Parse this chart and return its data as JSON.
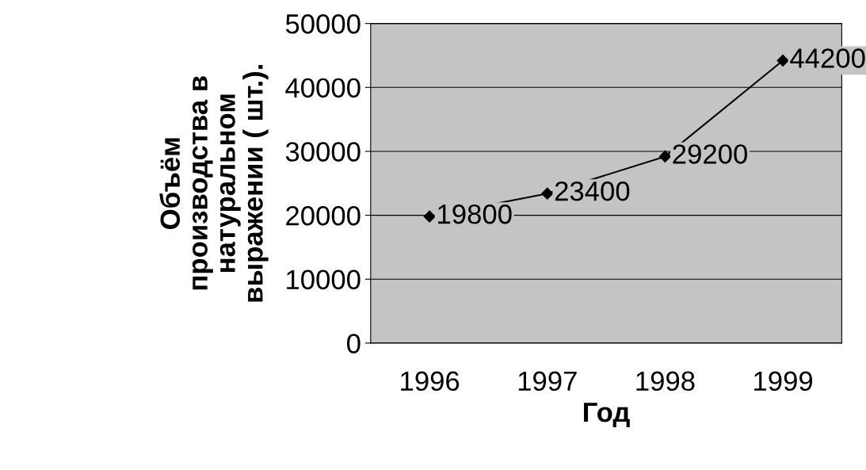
{
  "chart_data": {
    "type": "line",
    "xlabel": "Год",
    "ylabel": "Объём\nпроизводства в\nнатуральном\nвыражении ( шт.).",
    "categories": [
      "1996",
      "1997",
      "1998",
      "1999"
    ],
    "series": [
      {
        "color": "#000000",
        "values": [
          19800,
          23400,
          29200,
          44200
        ]
      }
    ],
    "ylim": [
      0,
      50000
    ],
    "yticks": [
      0,
      10000,
      20000,
      30000,
      40000,
      50000
    ],
    "grid": "y",
    "marker": "diamond",
    "line_style": "solid",
    "data_labels": true,
    "legend": false
  }
}
